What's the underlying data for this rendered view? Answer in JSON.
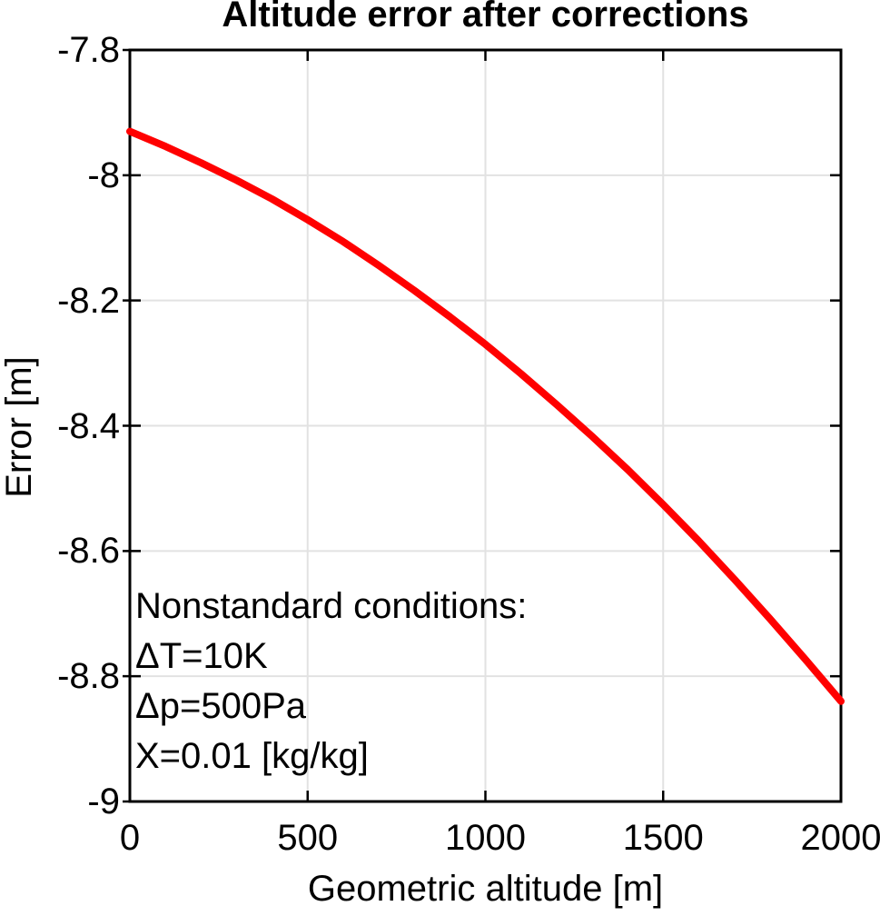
{
  "chart_data": {
    "type": "line",
    "title": "Altitude error after corrections",
    "xlabel": "Geometric altitude [m]",
    "ylabel": "Error [m]",
    "xlim": [
      0,
      2000
    ],
    "ylim": [
      -9,
      -7.8
    ],
    "xticks": {
      "values": [
        0,
        500,
        1000,
        1500,
        2000
      ],
      "labels": [
        "0",
        "500",
        "1000",
        "1500",
        "2000"
      ]
    },
    "yticks": {
      "values": [
        -7.8,
        -8,
        -8.2,
        -8.4,
        -8.6,
        -8.8,
        -9
      ],
      "labels": [
        "-7.8",
        "-8",
        "-8.2",
        "-8.4",
        "-8.6",
        "-8.8",
        "-9"
      ]
    },
    "grid": "on",
    "legend": "none",
    "annotation": {
      "lines": [
        "Nonstandard conditions:",
        "ΔT=10K",
        "Δp=500Pa",
        "X=0.01 [kg/kg]"
      ]
    },
    "series": [
      {
        "name": "altitude-error-curve",
        "color": "#ff0000",
        "line_width": 8,
        "x": [
          0,
          100,
          200,
          300,
          400,
          500,
          600,
          700,
          800,
          900,
          1000,
          1100,
          1200,
          1300,
          1400,
          1500,
          1600,
          1700,
          1800,
          1900,
          2000
        ],
        "y": [
          -7.93,
          -7.954,
          -7.98,
          -8.008,
          -8.038,
          -8.071,
          -8.106,
          -8.144,
          -8.184,
          -8.226,
          -8.27,
          -8.317,
          -8.366,
          -8.417,
          -8.47,
          -8.526,
          -8.584,
          -8.645,
          -8.708,
          -8.773,
          -8.84
        ]
      }
    ],
    "colors": {
      "axis": "#000000",
      "grid": "#e2e2e2",
      "text": "#000000",
      "background": "#ffffff"
    }
  }
}
